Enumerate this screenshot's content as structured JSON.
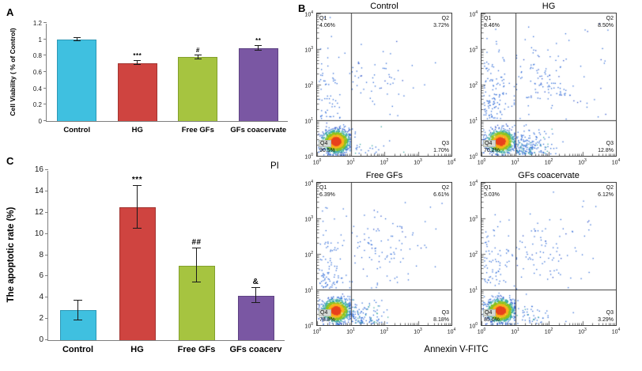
{
  "figure": {
    "panel_a": {
      "label": "A"
    },
    "panel_b": {
      "label": "B",
      "ylabel": "PI",
      "xlabel": "Annexin V-FITC"
    },
    "panel_c": {
      "label": "C"
    }
  },
  "chart_data": [
    {
      "type": "bar",
      "panel": "A",
      "ylabel": "Cell Viability ( % of Control)",
      "categories": [
        "Control",
        "HG",
        "Free GFs",
        "GFs coacervate"
      ],
      "values": [
        1.0,
        0.71,
        0.78,
        0.89
      ],
      "errors": [
        0.02,
        0.025,
        0.02,
        0.03
      ],
      "annotations": [
        "",
        "***",
        "#",
        "**"
      ],
      "yticks": [
        "0",
        "0.2",
        "0.4",
        "0.6",
        "0.8",
        "1",
        "1.2"
      ],
      "ylim": [
        0,
        1.2
      ],
      "grid": false,
      "colors": [
        "#3fc0e0",
        "#cf4440",
        "#a6c440",
        "#7a57a3"
      ],
      "border_colors": [
        "#2d98b5",
        "#a23531",
        "#82a02c",
        "#5e4283"
      ]
    },
    {
      "type": "bar",
      "panel": "C",
      "ylabel": "The apoptotic rate (%)",
      "categories": [
        "Control",
        "HG",
        "Free GFs",
        "GFs coacerv"
      ],
      "values": [
        2.8,
        12.5,
        7.0,
        4.2
      ],
      "errors": [
        0.9,
        2.0,
        1.6,
        0.7
      ],
      "annotations": [
        "",
        "***",
        "##",
        "&"
      ],
      "yticks": [
        "0",
        "2",
        "4",
        "6",
        "8",
        "10",
        "12",
        "14",
        "16"
      ],
      "ylim": [
        0,
        16
      ],
      "grid": false,
      "colors": [
        "#3fc0e0",
        "#cf4440",
        "#a6c440",
        "#7a57a3"
      ],
      "border_colors": [
        "#2d98b5",
        "#a23531",
        "#82a02c",
        "#5e4283"
      ]
    },
    {
      "type": "scatter",
      "panel": "B",
      "subtype": "flow-cytometry-density",
      "xlabel": "Annexin V-FITC",
      "ylabel": "PI",
      "axis_scale": "log10",
      "tick_exponents": [
        0,
        1,
        2,
        3,
        4
      ],
      "quadrant_gate": {
        "x": "10^1",
        "y": "10^1"
      },
      "quadrant_names": [
        "Q1",
        "Q2",
        "Q3",
        "Q4"
      ],
      "plots": [
        {
          "title": "Control",
          "Q1": "4.06%",
          "Q2": "3.72%",
          "Q3": "1.70%",
          "Q4": "90.5%"
        },
        {
          "title": "HG",
          "Q1": "8.46%",
          "Q2": "8.50%",
          "Q3": "12.8%",
          "Q4": "70.2%"
        },
        {
          "title": "Free GFs",
          "Q1": "6.39%",
          "Q2": "6.61%",
          "Q3": "8.18%",
          "Q4": "78.8%"
        },
        {
          "title": "GFs coacervate",
          "Q1": "5.03%",
          "Q2": "6.12%",
          "Q3": "3.29%",
          "Q4": "85.6%"
        }
      ]
    }
  ]
}
